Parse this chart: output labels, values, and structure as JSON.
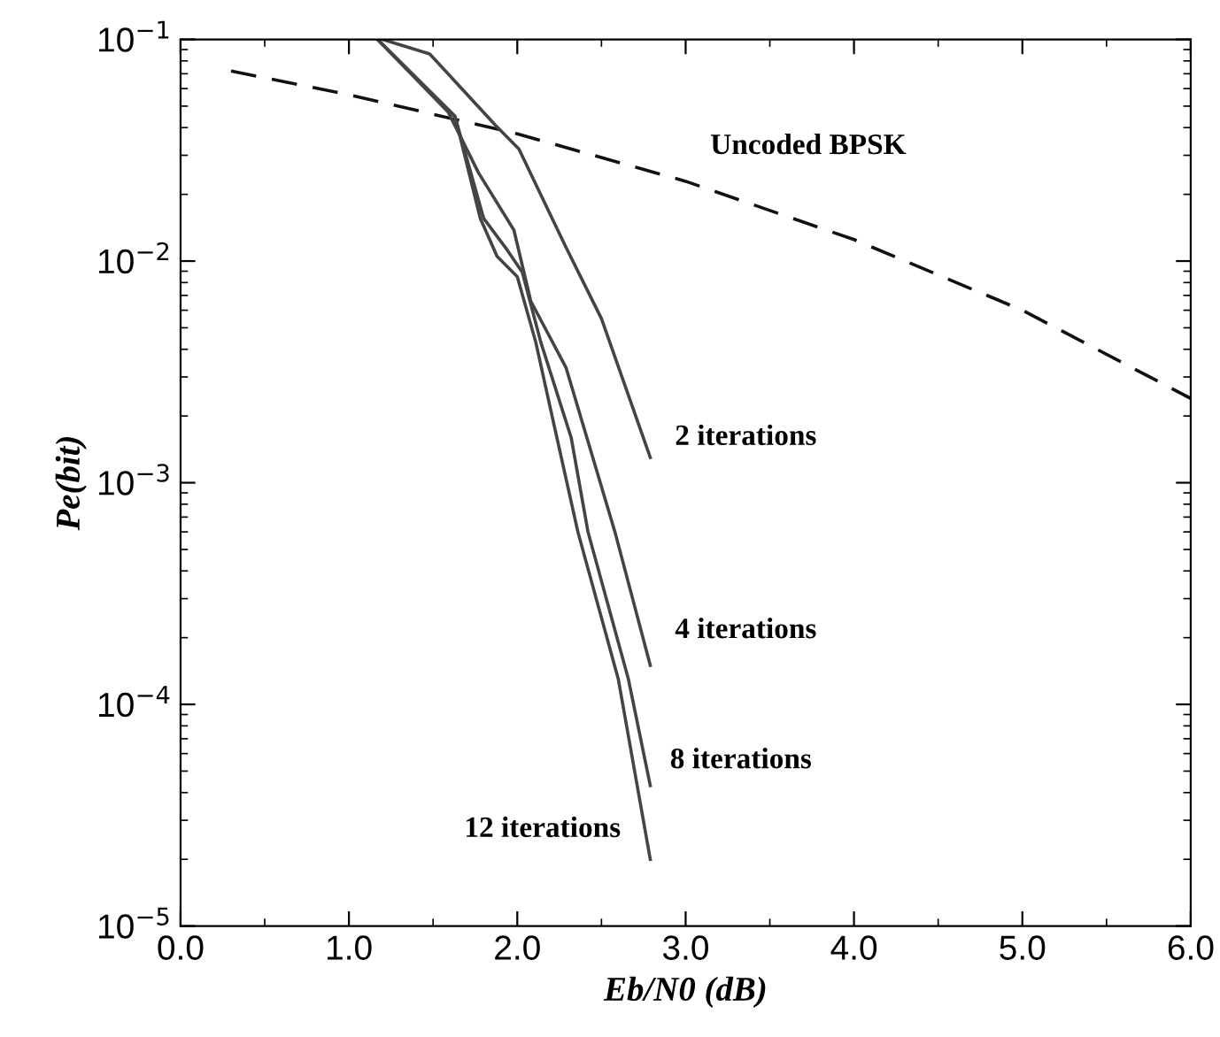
{
  "chart_data": {
    "type": "line",
    "xlabel": "Eb/N0 (dB)",
    "ylabel": "Pe(bit)",
    "log": "y",
    "xlim": [
      0,
      6
    ],
    "ylim": [
      1e-05,
      0.1
    ],
    "xticks": [
      {
        "value": 0,
        "label": "0.0"
      },
      {
        "value": 1,
        "label": "1.0"
      },
      {
        "value": 2,
        "label": "2.0"
      },
      {
        "value": 3,
        "label": "3.0"
      },
      {
        "value": 4,
        "label": "4.0"
      },
      {
        "value": 5,
        "label": "5.0"
      },
      {
        "value": 6,
        "label": "6.0"
      }
    ],
    "yticks": [
      {
        "value": 1e-05,
        "label": "10$^{−5}$"
      },
      {
        "value": 0.0001,
        "label": "10$^{−4}$"
      },
      {
        "value": 0.001,
        "label": "10$^{−3}$"
      },
      {
        "value": 0.01,
        "label": "10$^{−2}$"
      },
      {
        "value": 0.1,
        "label": "10$^{−1}$"
      }
    ],
    "grid": false,
    "legend": false,
    "series": [
      {
        "name": "Uncoded BPSK",
        "color": "#111111",
        "line_style": "dashed",
        "x": [
          0.3,
          1,
          2,
          3,
          4,
          5,
          6
        ],
        "values": [
          0.072,
          0.0563,
          0.0375,
          0.0229,
          0.0125,
          0.006,
          0.0024
        ]
      },
      {
        "name": "2 iterations",
        "color": "#444444",
        "line_style": "solid",
        "x": [
          1.2,
          1.48,
          1.87,
          2.01,
          2.29,
          2.5,
          2.79
        ],
        "values": [
          0.1,
          0.086,
          0.041,
          0.032,
          0.0115,
          0.0055,
          0.0013
        ]
      },
      {
        "name": "4 iterations",
        "color": "#444444",
        "line_style": "solid",
        "x": [
          1.17,
          1.59,
          1.77,
          1.98,
          2.08,
          2.29,
          2.58,
          2.79
        ],
        "values": [
          0.1,
          0.047,
          0.025,
          0.0138,
          0.0066,
          0.0033,
          0.0006,
          0.00015
        ]
      },
      {
        "name": "8 iterations",
        "color": "#444444",
        "line_style": "solid",
        "x": [
          1.17,
          1.63,
          1.8,
          1.93,
          2.03,
          2.14,
          2.32,
          2.42,
          2.66,
          2.79
        ],
        "values": [
          0.1,
          0.045,
          0.0156,
          0.0115,
          0.0089,
          0.0043,
          0.0016,
          0.0006,
          0.00013,
          4.3e-05
        ]
      },
      {
        "name": "12 iterations",
        "color": "#444444",
        "line_style": "solid",
        "x": [
          1.17,
          1.63,
          1.78,
          1.88,
          2.0,
          2.11,
          2.22,
          2.36,
          2.6,
          2.79
        ],
        "values": [
          0.1,
          0.045,
          0.0156,
          0.0105,
          0.0085,
          0.0043,
          0.0018,
          0.0006,
          0.00013,
          2e-05
        ]
      }
    ]
  }
}
